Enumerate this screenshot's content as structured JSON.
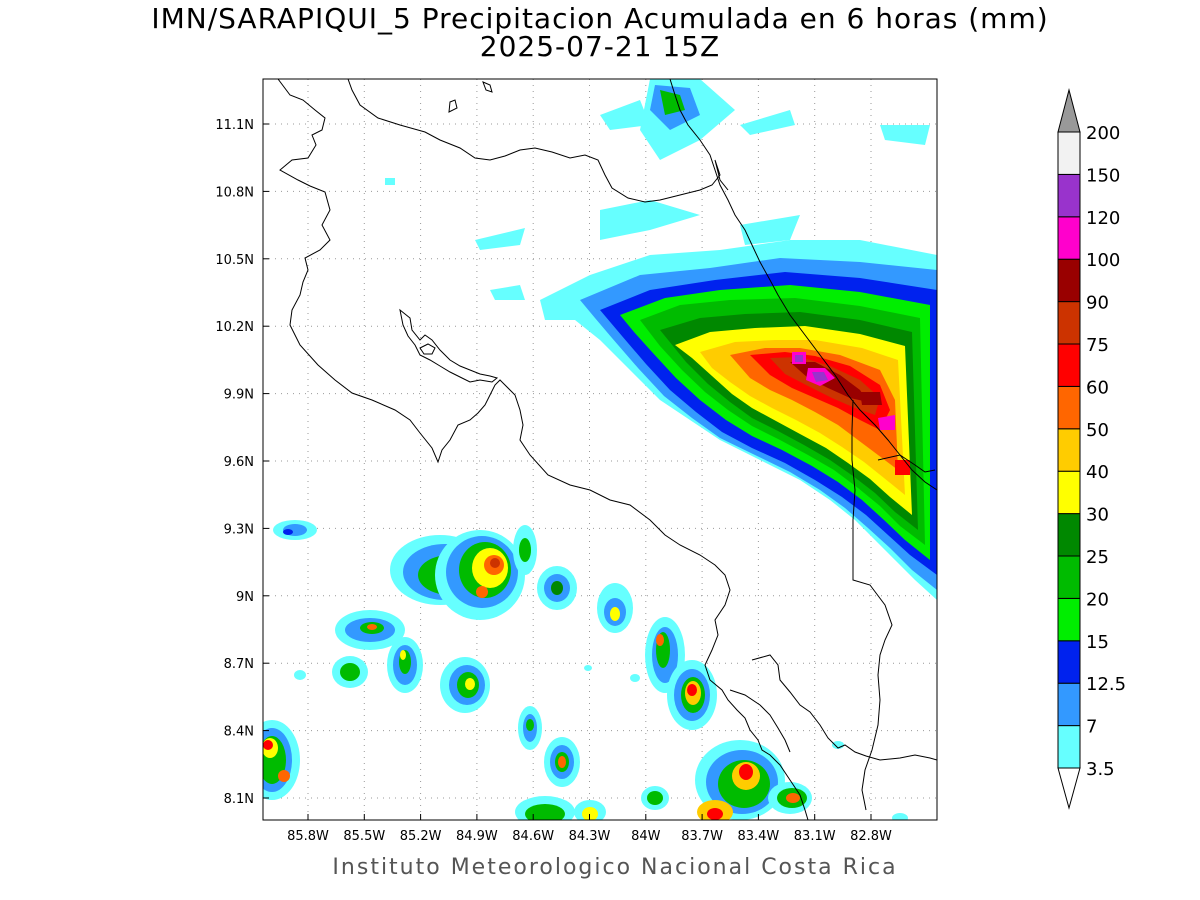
{
  "title": {
    "line1": "IMN/SARAPIQUI_5 Precipitacion Acumulada en 6 horas (mm)",
    "line2": "2025-07-21 15Z"
  },
  "footer": "Instituto Meteorologico Nacional Costa Rica",
  "axes": {
    "x_ticks": [
      "85.8W",
      "85.5W",
      "85.2W",
      "84.9W",
      "84.6W",
      "84.3W",
      "84W",
      "83.7W",
      "83.4W",
      "83.1W",
      "82.8W"
    ],
    "y_ticks": [
      "11.1N",
      "10.8N",
      "10.5N",
      "10.2N",
      "9.9N",
      "9.6N",
      "9.3N",
      "9N",
      "8.7N",
      "8.4N",
      "8.1N"
    ],
    "grid": "dotted"
  },
  "legend": {
    "orientation": "vertical",
    "placement": "right",
    "labels": [
      "3.5",
      "7",
      "12.5",
      "15",
      "20",
      "25",
      "30",
      "40",
      "50",
      "60",
      "75",
      "90",
      "100",
      "120",
      "150",
      "200"
    ],
    "colors": [
      "#66ffff",
      "#3399ff",
      "#0022ee",
      "#00ee00",
      "#00bb00",
      "#008800",
      "#ffff00",
      "#ffcc00",
      "#ff6600",
      "#ff0000",
      "#cc3300",
      "#990000",
      "#ff00cc",
      "#9933cc",
      "#f2f2f2",
      "#999999"
    ]
  },
  "colors": {
    "coastline": "#000000",
    "grid": "#999999"
  }
}
